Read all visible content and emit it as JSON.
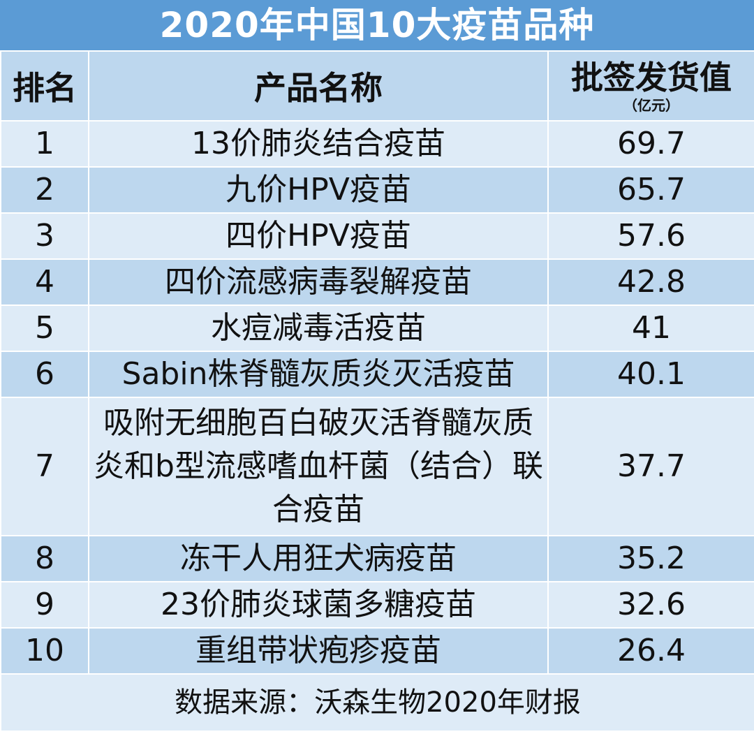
{
  "chart_data": {
    "type": "table",
    "title": "2020年中国10大疫苗品种",
    "columns": [
      "排名",
      "产品名称",
      "批签发货值"
    ],
    "value_unit": "（亿元）",
    "rows": [
      {
        "rank": "1",
        "name": "13价肺炎结合疫苗",
        "value": "69.7"
      },
      {
        "rank": "2",
        "name": "九价HPV疫苗",
        "value": "65.7"
      },
      {
        "rank": "3",
        "name": "四价HPV疫苗",
        "value": "57.6"
      },
      {
        "rank": "4",
        "name": "四价流感病毒裂解疫苗",
        "value": "42.8"
      },
      {
        "rank": "5",
        "name": "水痘减毒活疫苗",
        "value": "41"
      },
      {
        "rank": "6",
        "name": "Sabin株脊髓灰质炎灭活疫苗",
        "value": "40.1"
      },
      {
        "rank": "7",
        "name": "吸附无细胞百白破灭活脊髓灰质炎和b型流感嗜血杆菌（结合）联合疫苗",
        "value": "37.7"
      },
      {
        "rank": "8",
        "name": "冻干人用狂犬病疫苗",
        "value": "35.2"
      },
      {
        "rank": "9",
        "name": "23价肺炎球菌多糖疫苗",
        "value": "32.6"
      },
      {
        "rank": "10",
        "name": "重组带状疱疹疫苗",
        "value": "26.4"
      }
    ],
    "source": "数据来源：沃森生物2020年财报"
  },
  "colors": {
    "title_bg": "#5b9bd5",
    "header_bg": "#bdd7ee",
    "row_light": "#deebf7",
    "row_dark": "#bdd7ee"
  }
}
